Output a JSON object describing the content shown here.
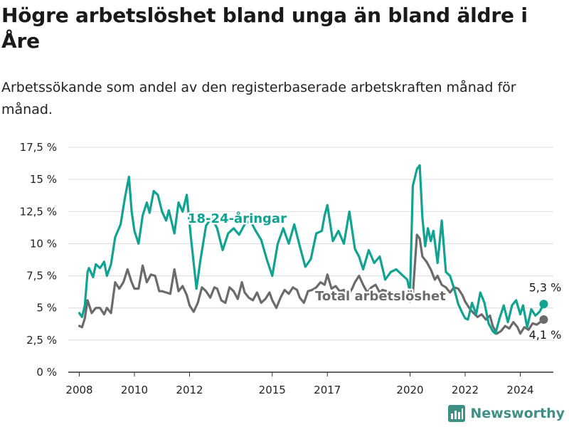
{
  "title": "Högre arbetslöshet bland unga än bland äldre i Åre",
  "subtitle": "Arbetssökande som andel av den registerbaserade arbetskraften månad för månad.",
  "brand": {
    "name": "Newsworthy",
    "icon": "newsworthy-logo-icon",
    "color": "#3e8f86"
  },
  "chart_data": {
    "type": "line",
    "ylim": [
      0,
      17.5
    ],
    "yticks": [
      0,
      2.5,
      5,
      7.5,
      10,
      12.5,
      15,
      17.5
    ],
    "ytick_labels": [
      "0 %",
      "2,5 %",
      "5 %",
      "7,5 %",
      "10 %",
      "12,5 %",
      "15 %",
      "17,5 %"
    ],
    "xlim": [
      2007.6,
      2025.2
    ],
    "xticks": [
      2008,
      2010,
      2012,
      2015,
      2017,
      2020,
      2022,
      2024
    ],
    "xtick_labels": [
      "2008",
      "2010",
      "2012",
      "2015",
      "2017",
      "2020",
      "2022",
      "2024"
    ],
    "grid": true,
    "series": [
      {
        "name": "18-24-åringar",
        "color": "#10a391",
        "end_label": "5,3 %",
        "x": [
          2008.0,
          2008.1,
          2008.2,
          2008.3,
          2008.35,
          2008.5,
          2008.6,
          2008.75,
          2008.9,
          2009.0,
          2009.15,
          2009.3,
          2009.5,
          2009.65,
          2009.8,
          2009.9,
          2010.0,
          2010.15,
          2010.3,
          2010.45,
          2010.55,
          2010.7,
          2010.85,
          2011.0,
          2011.15,
          2011.25,
          2011.45,
          2011.6,
          2011.75,
          2011.9,
          2012.05,
          2012.25,
          2012.4,
          2012.6,
          2012.8,
          2013.0,
          2013.2,
          2013.4,
          2013.6,
          2013.8,
          2014.0,
          2014.2,
          2014.4,
          2014.6,
          2014.8,
          2015.0,
          2015.2,
          2015.4,
          2015.6,
          2015.8,
          2016.0,
          2016.2,
          2016.4,
          2016.6,
          2016.8,
          2016.9,
          2017.0,
          2017.2,
          2017.4,
          2017.6,
          2017.8,
          2018.0,
          2018.15,
          2018.3,
          2018.5,
          2018.7,
          2018.9,
          2019.1,
          2019.3,
          2019.5,
          2019.7,
          2019.9,
          2020.0,
          2020.1,
          2020.25,
          2020.35,
          2020.45,
          2020.55,
          2020.65,
          2020.75,
          2020.85,
          2021.0,
          2021.15,
          2021.3,
          2021.45,
          2021.6,
          2021.75,
          2021.9,
          2022.0,
          2022.1,
          2022.25,
          2022.4,
          2022.55,
          2022.7,
          2022.85,
          2023.0,
          2023.1,
          2023.25,
          2023.4,
          2023.55,
          2023.7,
          2023.85,
          2024.0,
          2024.1,
          2024.25,
          2024.4,
          2024.55,
          2024.7,
          2024.85
        ],
        "values": [
          4.6,
          4.3,
          5.2,
          7.8,
          8.1,
          7.4,
          8.4,
          8.1,
          8.6,
          7.5,
          8.4,
          10.5,
          11.5,
          13.5,
          15.2,
          12.5,
          11.0,
          10.0,
          12.2,
          13.2,
          12.4,
          14.1,
          13.8,
          12.5,
          11.8,
          12.6,
          10.8,
          13.2,
          12.5,
          13.8,
          10.5,
          6.5,
          8.8,
          11.4,
          12.0,
          11.2,
          9.5,
          10.8,
          11.2,
          10.7,
          11.5,
          11.8,
          11.0,
          10.3,
          8.8,
          7.5,
          10.0,
          11.2,
          10.0,
          11.5,
          9.8,
          8.2,
          8.8,
          10.8,
          11.0,
          12.2,
          13.0,
          10.2,
          11.0,
          10.0,
          12.5,
          9.6,
          9.0,
          8.0,
          9.5,
          8.5,
          9.0,
          7.2,
          7.8,
          8.0,
          7.6,
          7.2,
          6.2,
          14.5,
          15.8,
          16.1,
          12.0,
          9.8,
          11.2,
          10.2,
          11.0,
          8.5,
          11.8,
          7.8,
          7.5,
          6.5,
          5.3,
          4.6,
          4.2,
          4.1,
          5.4,
          4.5,
          6.2,
          5.4,
          3.8,
          3.2,
          3.0,
          4.2,
          5.2,
          3.9,
          5.2,
          5.6,
          4.5,
          5.2,
          3.5,
          4.9,
          4.4,
          4.7,
          5.3
        ]
      },
      {
        "name": "Total arbetslöshet",
        "color": "#6b6b6b",
        "end_label": "4,1 %",
        "x": [
          2008.0,
          2008.1,
          2008.2,
          2008.3,
          2008.45,
          2008.6,
          2008.75,
          2008.9,
          2009.0,
          2009.15,
          2009.3,
          2009.45,
          2009.6,
          2009.75,
          2009.9,
          2010.0,
          2010.15,
          2010.3,
          2010.45,
          2010.6,
          2010.75,
          2010.9,
          2011.0,
          2011.15,
          2011.3,
          2011.45,
          2011.6,
          2011.75,
          2011.9,
          2012.0,
          2012.15,
          2012.3,
          2012.45,
          2012.6,
          2012.75,
          2012.9,
          2013.0,
          2013.15,
          2013.3,
          2013.45,
          2013.6,
          2013.75,
          2013.9,
          2014.0,
          2014.15,
          2014.3,
          2014.45,
          2014.6,
          2014.75,
          2014.9,
          2015.0,
          2015.15,
          2015.3,
          2015.45,
          2015.6,
          2015.75,
          2015.9,
          2016.0,
          2016.15,
          2016.3,
          2016.45,
          2016.6,
          2016.75,
          2016.9,
          2017.0,
          2017.15,
          2017.3,
          2017.45,
          2017.6,
          2017.75,
          2017.9,
          2018.0,
          2018.15,
          2018.3,
          2018.45,
          2018.6,
          2018.75,
          2018.9,
          2019.0,
          2019.15,
          2019.3,
          2019.45,
          2019.6,
          2019.75,
          2019.9,
          2020.0,
          2020.1,
          2020.25,
          2020.35,
          2020.45,
          2020.6,
          2020.75,
          2020.9,
          2021.0,
          2021.15,
          2021.3,
          2021.45,
          2021.6,
          2021.75,
          2021.9,
          2022.0,
          2022.15,
          2022.3,
          2022.45,
          2022.6,
          2022.75,
          2022.9,
          2023.0,
          2023.15,
          2023.3,
          2023.45,
          2023.6,
          2023.75,
          2023.9,
          2024.0,
          2024.15,
          2024.3,
          2024.45,
          2024.6,
          2024.85
        ],
        "values": [
          3.6,
          3.5,
          4.2,
          5.6,
          4.6,
          5.0,
          5.0,
          4.5,
          5.0,
          4.6,
          7.0,
          6.5,
          7.0,
          8.0,
          7.0,
          6.5,
          6.5,
          8.3,
          7.0,
          7.6,
          7.5,
          6.3,
          6.3,
          6.2,
          6.1,
          8.0,
          6.3,
          6.7,
          6.0,
          5.2,
          4.7,
          5.4,
          6.6,
          6.3,
          5.8,
          6.6,
          6.5,
          5.6,
          5.4,
          6.6,
          6.3,
          5.7,
          7.0,
          6.2,
          5.8,
          5.6,
          6.2,
          5.4,
          5.7,
          6.2,
          5.6,
          5.0,
          5.8,
          6.4,
          6.1,
          6.6,
          6.4,
          5.8,
          5.4,
          6.3,
          6.4,
          6.6,
          7.0,
          6.8,
          7.6,
          6.5,
          6.7,
          6.3,
          6.4,
          6.0,
          6.5,
          7.0,
          7.5,
          6.8,
          6.2,
          6.6,
          6.8,
          6.2,
          6.4,
          6.3,
          6.1,
          5.9,
          6.0,
          5.8,
          5.6,
          5.5,
          6.0,
          10.7,
          10.4,
          9.0,
          8.6,
          8.0,
          7.2,
          7.5,
          6.8,
          6.6,
          6.2,
          6.6,
          6.5,
          6.0,
          5.5,
          5.0,
          4.6,
          4.3,
          4.5,
          4.1,
          4.4,
          3.6,
          3.0,
          3.2,
          3.6,
          3.4,
          3.9,
          3.5,
          3.0,
          3.5,
          3.3,
          3.8,
          3.7,
          4.1
        ]
      }
    ]
  }
}
